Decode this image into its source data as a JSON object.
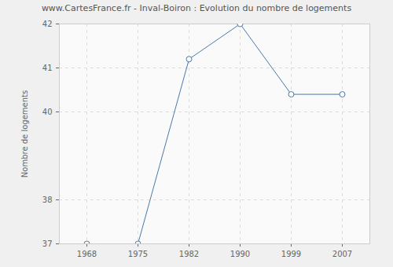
{
  "chart_data": {
    "type": "line",
    "title": "www.CartesFrance.fr - Inval-Boiron : Evolution du nombre de logements",
    "y_label": "Nombre de logements",
    "categories": [
      "1968",
      "1975",
      "1982",
      "1990",
      "1999",
      "2007"
    ],
    "values": [
      37,
      37,
      41.2,
      42,
      40.4,
      40.4
    ],
    "color": "#4a78aa",
    "marker": "circle",
    "ylim": [
      37,
      42
    ],
    "yticks": [
      37,
      38,
      40,
      41,
      42
    ],
    "grid": true
  }
}
